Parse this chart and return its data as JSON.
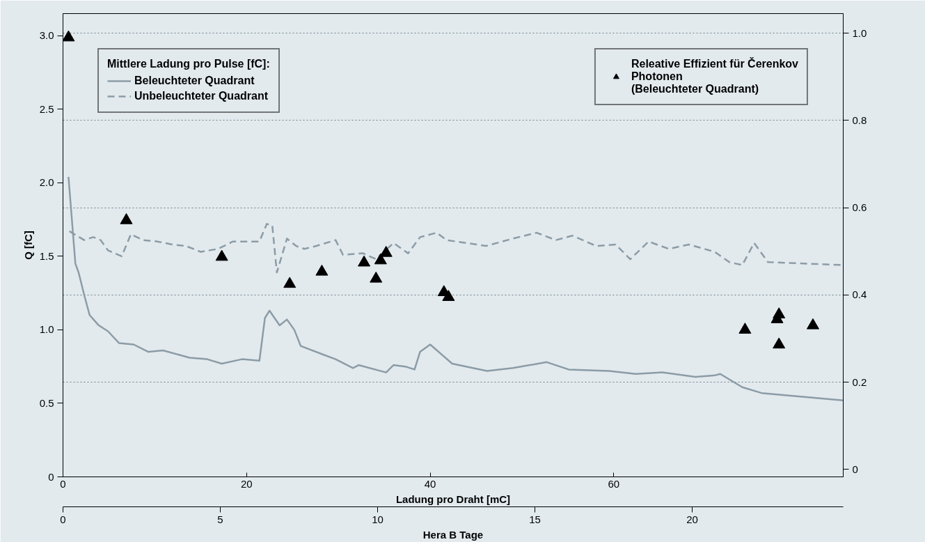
{
  "chart_data": {
    "type": "line",
    "xlabel": "Ladung pro Draht [mC]",
    "ylabel": "Q [fC]",
    "x2label": "Hera B Tage",
    "legend_title": "Mittlere Ladung pro Pulse [fC]:",
    "xlim": [
      0,
      85
    ],
    "xticks": [
      0,
      20,
      40,
      60
    ],
    "x2lim": [
      0,
      24.8
    ],
    "x2ticks": [
      0,
      5,
      10,
      15,
      20
    ],
    "ylim": [
      0,
      3.15
    ],
    "yticks": [
      0,
      0.5,
      {
        "value": 1,
        "label": "1.0"
      },
      1.5,
      {
        "value": 2,
        "label": "2.0"
      },
      2.5,
      {
        "value": 3,
        "label": "3.0"
      }
    ],
    "y2lim": [
      -0.017,
      1.045
    ],
    "y2ticks": [
      0,
      0.2,
      0.4,
      0.6,
      0.8,
      {
        "value": 1,
        "label": "1.0"
      }
    ],
    "grid": "y2",
    "legend": "top",
    "series": [
      {
        "name": "Beleuchteter Quadrant",
        "type": "line",
        "line_style": "solid",
        "color": "#8c9ca6",
        "x": [
          0.6,
          1.35,
          1.7,
          2.3,
          2.9,
          3.9,
          4.9,
          6.1,
          7.7,
          9.3,
          10.9,
          13.8,
          15.7,
          17.3,
          19.5,
          21.4,
          22.0,
          22.5,
          23.6,
          24.4,
          25.2,
          25.9,
          28.4,
          29.7,
          31.6,
          32.2,
          35.2,
          36.0,
          37.3,
          38.3,
          38.9,
          40.0,
          42.4,
          46.2,
          49.0,
          52.7,
          55.1,
          59.5,
          62.4,
          65.3,
          68.9,
          71.0,
          71.6,
          74.0,
          76.1,
          79.7,
          85.0
        ],
        "values": [
          2.04,
          1.45,
          1.39,
          1.24,
          1.1,
          1.03,
          0.99,
          0.91,
          0.9,
          0.85,
          0.86,
          0.81,
          0.8,
          0.77,
          0.8,
          0.79,
          1.08,
          1.13,
          1.03,
          1.07,
          1.0,
          0.89,
          0.83,
          0.8,
          0.74,
          0.76,
          0.71,
          0.76,
          0.75,
          0.73,
          0.85,
          0.9,
          0.77,
          0.72,
          0.74,
          0.78,
          0.73,
          0.72,
          0.7,
          0.71,
          0.68,
          0.69,
          0.7,
          0.61,
          0.57,
          0.55,
          0.52
        ]
      },
      {
        "name": "Unbeleuchteter Quadrant",
        "line_style": "dashed",
        "color": "#8c9ca6",
        "x": [
          0.7,
          2.3,
          3.3,
          4.1,
          4.9,
          6.4,
          7.4,
          8.7,
          10.3,
          11.9,
          13.4,
          15.0,
          16.9,
          18.5,
          21.4,
          22.2,
          22.8,
          23.3,
          24.4,
          25.4,
          26.3,
          27.6,
          29.7,
          30.5,
          32.7,
          34.1,
          36.0,
          37.6,
          38.9,
          40.7,
          41.8,
          46.1,
          49.0,
          51.6,
          53.7,
          55.5,
          58.1,
          60.2,
          61.8,
          63.8,
          66.0,
          68.2,
          71.0,
          72.6,
          74.0,
          75.3,
          76.8,
          85.0
        ],
        "values": [
          1.67,
          1.61,
          1.63,
          1.61,
          1.54,
          1.5,
          1.65,
          1.61,
          1.6,
          1.58,
          1.57,
          1.53,
          1.55,
          1.6,
          1.6,
          1.72,
          1.71,
          1.39,
          1.62,
          1.57,
          1.55,
          1.57,
          1.61,
          1.51,
          1.52,
          1.48,
          1.59,
          1.52,
          1.63,
          1.66,
          1.61,
          1.57,
          1.62,
          1.66,
          1.61,
          1.64,
          1.57,
          1.58,
          1.48,
          1.6,
          1.55,
          1.58,
          1.53,
          1.46,
          1.44,
          1.59,
          1.46,
          1.44
        ]
      },
      {
        "name": "Releative Effizient für Čerenkov\nPhotonen\n(Beleuchteter Quadrant)",
        "type": "scatter",
        "marker": "triangle",
        "axis": "y2",
        "color": "#000000",
        "x": [
          0.6,
          6.9,
          17.3,
          24.7,
          28.2,
          32.8,
          34.6,
          35.2,
          34.1,
          41.5,
          42.0,
          74.3,
          78.0,
          77.8,
          78.0,
          81.7
        ],
        "values": [
          0.99,
          0.571,
          0.487,
          0.425,
          0.453,
          0.474,
          0.479,
          0.496,
          0.437,
          0.406,
          0.395,
          0.32,
          0.355,
          0.344,
          0.286,
          0.33
        ]
      }
    ]
  }
}
